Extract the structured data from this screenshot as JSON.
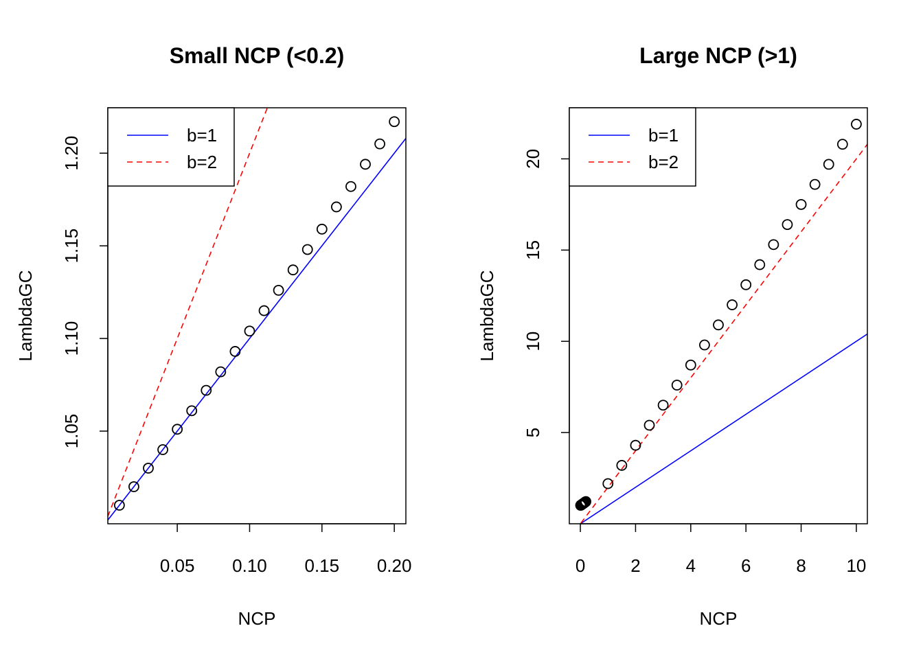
{
  "chart_data": [
    {
      "type": "scatter",
      "title": "Small NCP (<0.2)",
      "xlabel": "NCP",
      "ylabel": "LambdaGC",
      "xlim": [
        0.002,
        0.208
      ],
      "ylim": [
        1.0,
        1.2245
      ],
      "xticks": [
        0.05,
        0.1,
        0.15,
        0.2
      ],
      "xtick_labels": [
        "0.05",
        "0.10",
        "0.15",
        "0.20"
      ],
      "yticks": [
        1.05,
        1.1,
        1.15,
        1.2
      ],
      "ytick_labels": [
        "1.05",
        "1.10",
        "1.15",
        "1.20"
      ],
      "points": {
        "x": [
          0.01,
          0.02,
          0.03,
          0.04,
          0.05,
          0.06,
          0.07,
          0.08,
          0.09,
          0.1,
          0.11,
          0.12,
          0.13,
          0.14,
          0.15,
          0.16,
          0.17,
          0.18,
          0.19,
          0.2
        ],
        "y": [
          1.01,
          1.02,
          1.03,
          1.04,
          1.051,
          1.061,
          1.072,
          1.082,
          1.093,
          1.104,
          1.115,
          1.126,
          1.137,
          1.148,
          1.159,
          1.171,
          1.182,
          1.194,
          1.205,
          1.217
        ]
      },
      "series": [
        {
          "name": "b=1",
          "color": "#0000ff",
          "dash": "solid",
          "slope": 1.0,
          "intercept": 1.0
        },
        {
          "name": "b=2",
          "color": "#ff0000",
          "dash": "dashed",
          "slope": 2.0,
          "intercept": 1.0
        }
      ],
      "legend": {
        "position": "top-left",
        "entries": [
          "b=1",
          "b=2"
        ]
      }
    },
    {
      "type": "scatter",
      "title": "Large NCP (>1)",
      "xlabel": "NCP",
      "ylabel": "LambdaGC",
      "xlim": [
        -0.4,
        10.4
      ],
      "ylim": [
        0.0,
        22.8
      ],
      "xticks": [
        0,
        2,
        4,
        6,
        8,
        10
      ],
      "xtick_labels": [
        "0",
        "2",
        "4",
        "6",
        "8",
        "10"
      ],
      "yticks": [
        5,
        10,
        15,
        20
      ],
      "ytick_labels": [
        "5",
        "10",
        "15",
        "20"
      ],
      "points": {
        "x": [
          0.01,
          0.02,
          0.03,
          0.04,
          0.05,
          0.06,
          0.07,
          0.08,
          0.09,
          0.1,
          0.11,
          0.12,
          0.13,
          0.14,
          0.15,
          0.16,
          0.17,
          0.18,
          0.19,
          0.2,
          1.0,
          1.5,
          2.0,
          2.5,
          3.0,
          3.5,
          4.0,
          4.5,
          5.0,
          5.5,
          6.0,
          6.5,
          7.0,
          7.5,
          8.0,
          8.5,
          9.0,
          9.5,
          10.0
        ],
        "y": [
          1.01,
          1.02,
          1.03,
          1.04,
          1.051,
          1.061,
          1.072,
          1.082,
          1.093,
          1.104,
          1.115,
          1.126,
          1.137,
          1.148,
          1.159,
          1.171,
          1.182,
          1.194,
          1.205,
          1.217,
          2.2,
          3.2,
          4.3,
          5.4,
          6.5,
          7.6,
          8.7,
          9.8,
          10.9,
          12.0,
          13.1,
          14.2,
          15.3,
          16.4,
          17.5,
          18.6,
          19.7,
          20.8,
          21.9
        ]
      },
      "series": [
        {
          "name": "b=1",
          "color": "#0000ff",
          "dash": "solid",
          "slope": 1.0,
          "intercept": 0.0
        },
        {
          "name": "b=2",
          "color": "#ff0000",
          "dash": "dashed",
          "slope": 2.0,
          "intercept": 0.0
        }
      ],
      "legend": {
        "position": "top-left",
        "entries": [
          "b=1",
          "b=2"
        ]
      }
    }
  ]
}
